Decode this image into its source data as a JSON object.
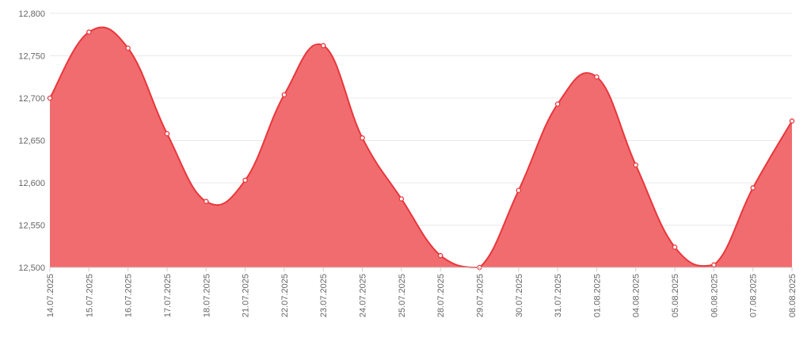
{
  "chart_data": {
    "type": "area",
    "title": "",
    "xlabel": "",
    "ylabel": "",
    "x": [
      "14.07.2025",
      "15.07.2025",
      "16.07.2025",
      "17.07.2025",
      "18.07.2025",
      "21.07.2025",
      "22.07.2025",
      "23.07.2025",
      "24.07.2025",
      "25.07.2025",
      "28.07.2025",
      "29.07.2025",
      "30.07.2025",
      "31.07.2025",
      "01.08.2025",
      "04.08.2025",
      "05.08.2025",
      "06.08.2025",
      "07.08.2025",
      "08.08.2025"
    ],
    "series": [
      {
        "values": [
          12700,
          12778,
          12759,
          12658,
          12578,
          12603,
          12704,
          12762,
          12653,
          12581,
          12514,
          12500,
          12591,
          12693,
          12725,
          12621,
          12524,
          12503,
          12594,
          12673
        ]
      }
    ],
    "ylim": [
      12500,
      12800
    ],
    "yticks": [
      "12,500",
      "12,550",
      "12,600",
      "12,650",
      "12,700",
      "12,750",
      "12,800"
    ],
    "ytick_values": [
      12500,
      12550,
      12600,
      12650,
      12700,
      12750,
      12800
    ],
    "grid": true,
    "colors": {
      "fill": "#f06467",
      "line": "#e8373c",
      "marker_fill": "#ffffff",
      "grid": "#e9e9e9",
      "text": "#666666"
    }
  }
}
